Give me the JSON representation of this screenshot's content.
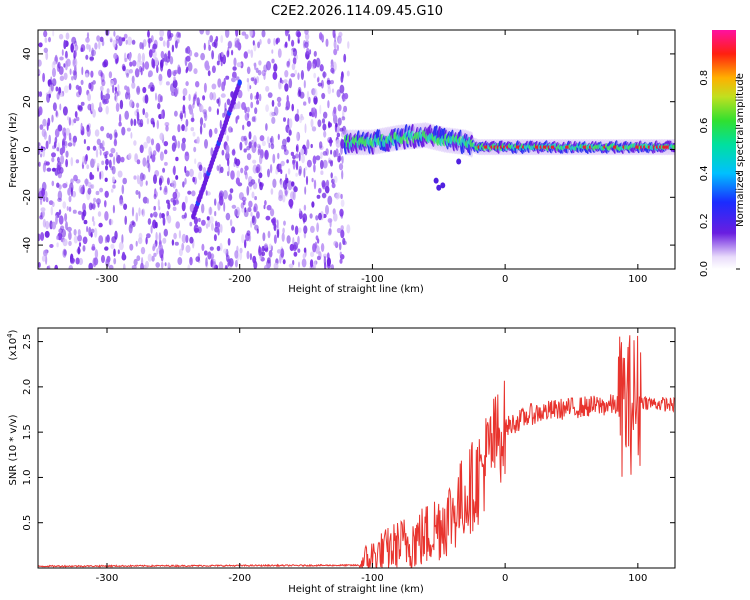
{
  "title": "C2E2.2026.114.09.45.G10",
  "colors": {
    "snr_line": "#e8342e",
    "dot_purple": "#6a1ee0",
    "band_cyan": "#20d0c0",
    "band_green": "#40e060",
    "band_red": "#e8202a"
  },
  "chart_data": [
    {
      "type": "heatmap",
      "title": "C2E2.2026.114.09.45.G10",
      "xlabel": "Height of straight line (km)",
      "ylabel": "Frequency (Hz)",
      "xlim": [
        -352,
        128
      ],
      "ylim": [
        -50,
        50
      ],
      "xticks": [
        -300,
        -200,
        -100,
        0,
        100
      ],
      "yticks": [
        -40,
        -20,
        0,
        20,
        40
      ],
      "noise_region": {
        "x": [
          -352,
          -118
        ],
        "y": [
          -50,
          50
        ]
      },
      "chirp_segment": {
        "x": [
          -235,
          -200
        ],
        "y": [
          -28,
          28
        ]
      },
      "signal_band": [
        {
          "x": -120,
          "y": 3
        },
        {
          "x": -100,
          "y": 3
        },
        {
          "x": -80,
          "y": 5
        },
        {
          "x": -60,
          "y": 6
        },
        {
          "x": -45,
          "y": 4
        },
        {
          "x": -30,
          "y": 3
        },
        {
          "x": -20,
          "y": 1
        },
        {
          "x": 0,
          "y": 1
        },
        {
          "x": 50,
          "y": 1
        },
        {
          "x": 100,
          "y": 1
        },
        {
          "x": 128,
          "y": 1
        }
      ],
      "colorbar": {
        "label": "Normalized spectral amplitude",
        "range": [
          0,
          1
        ],
        "ticks": [
          "0.0",
          "0.2",
          "0.4",
          "0.6",
          "0.8"
        ],
        "tick_values": [
          0.0,
          0.2,
          0.4,
          0.6,
          0.8
        ]
      }
    },
    {
      "type": "line",
      "xlabel": "Height of straight line (km)",
      "ylabel": "SNR (10 * v/v)",
      "multiplier_label": "(x10",
      "multiplier_exp": "4",
      "xlim": [
        -352,
        128
      ],
      "ylim": [
        0,
        2.65
      ],
      "xticks": [
        -300,
        -200,
        -100,
        0,
        100
      ],
      "yticks": [
        0.5,
        1.0,
        1.5,
        2.0,
        2.5
      ],
      "ytick_labels": [
        "0.5",
        "1.0",
        "1.5",
        "2.0",
        "2.5"
      ],
      "series": [
        {
          "name": "SNR",
          "trend_x": [
            -352,
            -110,
            -100,
            -80,
            -60,
            -40,
            -20,
            -10,
            0,
            20,
            40,
            60,
            80,
            90,
            100,
            110,
            128
          ],
          "trend_y": [
            0.02,
            0.03,
            0.12,
            0.25,
            0.35,
            0.6,
            1.0,
            1.35,
            1.55,
            1.7,
            1.75,
            1.78,
            1.8,
            1.8,
            1.85,
            1.82,
            1.8
          ]
        }
      ]
    }
  ]
}
